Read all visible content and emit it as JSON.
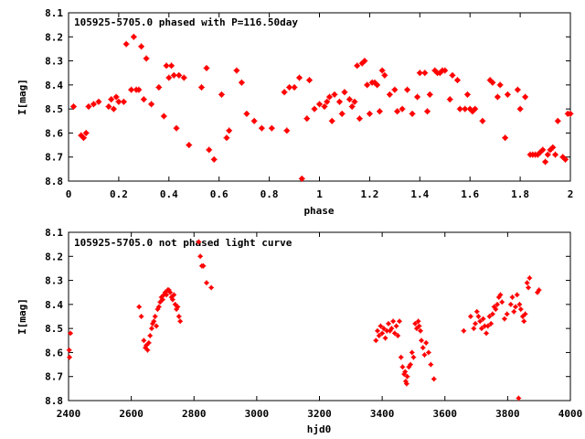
{
  "chart_data": [
    {
      "type": "scatter",
      "title": "105925-5705.0 phased with P=116.50day",
      "xlabel": "phase",
      "ylabel": "I[mag]",
      "xlim": [
        0,
        2
      ],
      "ylim": [
        8.8,
        8.1
      ],
      "y_inverted": true,
      "xticks": [
        "0",
        "0.2",
        "0.4",
        "0.6",
        "0.8",
        "1",
        "1.2",
        "1.4",
        "1.6",
        "1.8",
        "2"
      ],
      "yticks": [
        "8.1",
        "8.2",
        "8.3",
        "8.4",
        "8.5",
        "8.6",
        "8.7",
        "8.8"
      ],
      "grid": false,
      "marker_color": "#ff0000",
      "points": [
        [
          0.02,
          8.49
        ],
        [
          0.05,
          8.61
        ],
        [
          0.06,
          8.62
        ],
        [
          0.07,
          8.6
        ],
        [
          0.08,
          8.49
        ],
        [
          0.1,
          8.48
        ],
        [
          0.12,
          8.47
        ],
        [
          0.16,
          8.49
        ],
        [
          0.17,
          8.46
        ],
        [
          0.18,
          8.5
        ],
        [
          0.19,
          8.45
        ],
        [
          0.2,
          8.47
        ],
        [
          0.22,
          8.47
        ],
        [
          0.23,
          8.23
        ],
        [
          0.25,
          8.42
        ],
        [
          0.26,
          8.2
        ],
        [
          0.27,
          8.42
        ],
        [
          0.28,
          8.42
        ],
        [
          0.29,
          8.24
        ],
        [
          0.3,
          8.46
        ],
        [
          0.31,
          8.29
        ],
        [
          0.33,
          8.48
        ],
        [
          0.36,
          8.41
        ],
        [
          0.38,
          8.53
        ],
        [
          0.39,
          8.32
        ],
        [
          0.4,
          8.37
        ],
        [
          0.41,
          8.32
        ],
        [
          0.42,
          8.36
        ],
        [
          0.43,
          8.58
        ],
        [
          0.44,
          8.36
        ],
        [
          0.46,
          8.37
        ],
        [
          0.48,
          8.65
        ],
        [
          0.53,
          8.41
        ],
        [
          0.55,
          8.33
        ],
        [
          0.56,
          8.67
        ],
        [
          0.58,
          8.71
        ],
        [
          0.61,
          8.44
        ],
        [
          0.63,
          8.62
        ],
        [
          0.64,
          8.59
        ],
        [
          0.67,
          8.34
        ],
        [
          0.69,
          8.39
        ],
        [
          0.71,
          8.52
        ],
        [
          0.74,
          8.55
        ],
        [
          0.77,
          8.58
        ],
        [
          0.81,
          8.58
        ],
        [
          0.86,
          8.43
        ],
        [
          0.87,
          8.59
        ],
        [
          0.88,
          8.41
        ],
        [
          0.9,
          8.41
        ],
        [
          0.92,
          8.37
        ],
        [
          0.93,
          8.79
        ],
        [
          0.95,
          8.54
        ],
        [
          0.96,
          8.38
        ],
        [
          0.98,
          8.5
        ],
        [
          1.0,
          8.48
        ],
        [
          1.02,
          8.49
        ],
        [
          1.03,
          8.47
        ],
        [
          1.04,
          8.45
        ],
        [
          1.05,
          8.55
        ],
        [
          1.06,
          8.44
        ],
        [
          1.08,
          8.47
        ],
        [
          1.09,
          8.52
        ],
        [
          1.1,
          8.43
        ],
        [
          1.12,
          8.46
        ],
        [
          1.13,
          8.49
        ],
        [
          1.14,
          8.47
        ],
        [
          1.15,
          8.32
        ],
        [
          1.16,
          8.54
        ],
        [
          1.17,
          8.31
        ],
        [
          1.18,
          8.3
        ],
        [
          1.19,
          8.4
        ],
        [
          1.2,
          8.52
        ],
        [
          1.21,
          8.39
        ],
        [
          1.22,
          8.39
        ],
        [
          1.23,
          8.4
        ],
        [
          1.24,
          8.51
        ],
        [
          1.25,
          8.34
        ],
        [
          1.26,
          8.36
        ],
        [
          1.28,
          8.44
        ],
        [
          1.3,
          8.42
        ],
        [
          1.31,
          8.51
        ],
        [
          1.33,
          8.5
        ],
        [
          1.35,
          8.42
        ],
        [
          1.37,
          8.52
        ],
        [
          1.39,
          8.45
        ],
        [
          1.4,
          8.35
        ],
        [
          1.42,
          8.35
        ],
        [
          1.43,
          8.51
        ],
        [
          1.44,
          8.44
        ],
        [
          1.46,
          8.34
        ],
        [
          1.47,
          8.35
        ],
        [
          1.48,
          8.35
        ],
        [
          1.49,
          8.34
        ],
        [
          1.5,
          8.34
        ],
        [
          1.52,
          8.46
        ],
        [
          1.53,
          8.36
        ],
        [
          1.55,
          8.38
        ],
        [
          1.56,
          8.5
        ],
        [
          1.58,
          8.5
        ],
        [
          1.59,
          8.44
        ],
        [
          1.6,
          8.5
        ],
        [
          1.61,
          8.51
        ],
        [
          1.62,
          8.5
        ],
        [
          1.65,
          8.55
        ],
        [
          1.68,
          8.38
        ],
        [
          1.69,
          8.39
        ],
        [
          1.71,
          8.45
        ],
        [
          1.72,
          8.4
        ],
        [
          1.74,
          8.62
        ],
        [
          1.75,
          8.44
        ],
        [
          1.79,
          8.42
        ],
        [
          1.8,
          8.5
        ],
        [
          1.82,
          8.45
        ],
        [
          1.84,
          8.69
        ],
        [
          1.85,
          8.69
        ],
        [
          1.86,
          8.69
        ],
        [
          1.87,
          8.69
        ],
        [
          1.88,
          8.68
        ],
        [
          1.89,
          8.67
        ],
        [
          1.9,
          8.72
        ],
        [
          1.91,
          8.69
        ],
        [
          1.92,
          8.67
        ],
        [
          1.93,
          8.66
        ],
        [
          1.94,
          8.69
        ],
        [
          1.95,
          8.55
        ],
        [
          1.97,
          8.7
        ],
        [
          1.98,
          8.71
        ],
        [
          1.99,
          8.52
        ],
        [
          2.0,
          8.52
        ]
      ]
    },
    {
      "type": "scatter",
      "title": "105925-5705.0 not phased light curve",
      "xlabel": "hjd0",
      "ylabel": "I[mag]",
      "xlim": [
        2400,
        4000
      ],
      "ylim": [
        8.8,
        8.1
      ],
      "y_inverted": true,
      "xticks": [
        "2400",
        "2600",
        "2800",
        "3000",
        "3200",
        "3400",
        "3600",
        "3800",
        "4000"
      ],
      "yticks": [
        "8.1",
        "8.2",
        "8.3",
        "8.4",
        "8.5",
        "8.6",
        "8.7",
        "8.8"
      ],
      "grid": false,
      "marker_color": "#ff0000",
      "points": [
        [
          2402,
          8.59
        ],
        [
          2403,
          8.62
        ],
        [
          2406,
          8.52
        ],
        [
          2625,
          8.41
        ],
        [
          2632,
          8.45
        ],
        [
          2640,
          8.55
        ],
        [
          2645,
          8.58
        ],
        [
          2648,
          8.57
        ],
        [
          2652,
          8.59
        ],
        [
          2656,
          8.56
        ],
        [
          2660,
          8.53
        ],
        [
          2665,
          8.5
        ],
        [
          2668,
          8.48
        ],
        [
          2672,
          8.47
        ],
        [
          2676,
          8.45
        ],
        [
          2680,
          8.49
        ],
        [
          2684,
          8.42
        ],
        [
          2688,
          8.41
        ],
        [
          2692,
          8.39
        ],
        [
          2696,
          8.37
        ],
        [
          2700,
          8.38
        ],
        [
          2704,
          8.36
        ],
        [
          2708,
          8.35
        ],
        [
          2712,
          8.36
        ],
        [
          2716,
          8.34
        ],
        [
          2720,
          8.34
        ],
        [
          2724,
          8.35
        ],
        [
          2728,
          8.37
        ],
        [
          2732,
          8.38
        ],
        [
          2736,
          8.36
        ],
        [
          2740,
          8.4
        ],
        [
          2744,
          8.42
        ],
        [
          2748,
          8.41
        ],
        [
          2752,
          8.45
        ],
        [
          2756,
          8.47
        ],
        [
          2815,
          8.14
        ],
        [
          2820,
          8.2
        ],
        [
          2825,
          8.24
        ],
        [
          2830,
          8.24
        ],
        [
          2840,
          8.31
        ],
        [
          2855,
          8.33
        ],
        [
          3380,
          8.55
        ],
        [
          3385,
          8.51
        ],
        [
          3390,
          8.53
        ],
        [
          3395,
          8.49
        ],
        [
          3400,
          8.52
        ],
        [
          3405,
          8.5
        ],
        [
          3410,
          8.54
        ],
        [
          3415,
          8.51
        ],
        [
          3420,
          8.48
        ],
        [
          3425,
          8.51
        ],
        [
          3430,
          8.5
        ],
        [
          3435,
          8.47
        ],
        [
          3440,
          8.52
        ],
        [
          3445,
          8.49
        ],
        [
          3450,
          8.53
        ],
        [
          3455,
          8.47
        ],
        [
          3460,
          8.62
        ],
        [
          3465,
          8.66
        ],
        [
          3470,
          8.69
        ],
        [
          3473,
          8.68
        ],
        [
          3475,
          8.72
        ],
        [
          3478,
          8.73
        ],
        [
          3480,
          8.7
        ],
        [
          3485,
          8.66
        ],
        [
          3490,
          8.65
        ],
        [
          3495,
          8.6
        ],
        [
          3500,
          8.62
        ],
        [
          3505,
          8.48
        ],
        [
          3510,
          8.5
        ],
        [
          3515,
          8.47
        ],
        [
          3518,
          8.49
        ],
        [
          3522,
          8.51
        ],
        [
          3525,
          8.55
        ],
        [
          3530,
          8.58
        ],
        [
          3535,
          8.61
        ],
        [
          3540,
          8.56
        ],
        [
          3548,
          8.6
        ],
        [
          3555,
          8.65
        ],
        [
          3565,
          8.71
        ],
        [
          3660,
          8.51
        ],
        [
          3682,
          8.45
        ],
        [
          3692,
          8.5
        ],
        [
          3697,
          8.48
        ],
        [
          3702,
          8.43
        ],
        [
          3707,
          8.45
        ],
        [
          3712,
          8.47
        ],
        [
          3717,
          8.5
        ],
        [
          3722,
          8.46
        ],
        [
          3727,
          8.49
        ],
        [
          3732,
          8.52
        ],
        [
          3737,
          8.49
        ],
        [
          3742,
          8.45
        ],
        [
          3747,
          8.48
        ],
        [
          3752,
          8.44
        ],
        [
          3757,
          8.41
        ],
        [
          3762,
          8.42
        ],
        [
          3767,
          8.4
        ],
        [
          3772,
          8.37
        ],
        [
          3777,
          8.36
        ],
        [
          3782,
          8.39
        ],
        [
          3790,
          8.46
        ],
        [
          3798,
          8.44
        ],
        [
          3810,
          8.4
        ],
        [
          3815,
          8.37
        ],
        [
          3820,
          8.43
        ],
        [
          3825,
          8.41
        ],
        [
          3830,
          8.36
        ],
        [
          3835,
          8.79
        ],
        [
          3838,
          8.4
        ],
        [
          3842,
          8.42
        ],
        [
          3848,
          8.45
        ],
        [
          3852,
          8.47
        ],
        [
          3856,
          8.44
        ],
        [
          3862,
          8.31
        ],
        [
          3866,
          8.33
        ],
        [
          3870,
          8.29
        ],
        [
          3895,
          8.35
        ],
        [
          3900,
          8.34
        ]
      ]
    }
  ]
}
